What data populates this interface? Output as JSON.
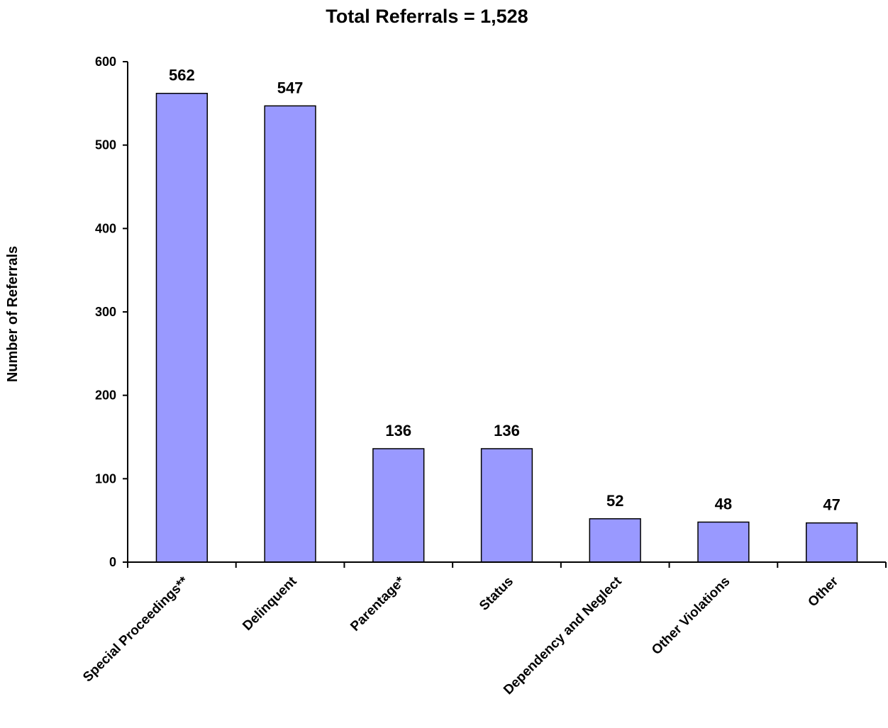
{
  "chart_data": {
    "type": "bar",
    "title": "Total Referrals = 1,528",
    "xlabel": "",
    "ylabel": "Number of Referrals",
    "categories": [
      "Special Proceedings**",
      "Delinquent",
      "Parentage*",
      "Status",
      "Dependency and Neglect",
      "Other Violations",
      "Other"
    ],
    "values": [
      562,
      547,
      136,
      136,
      52,
      48,
      47
    ],
    "data_labels": [
      "562",
      "547",
      "136",
      "136",
      "52",
      "48",
      "47"
    ],
    "ylim": [
      0,
      600
    ],
    "yticks": [
      0,
      100,
      200,
      300,
      400,
      500,
      600
    ],
    "ytick_labels": [
      "0",
      "100",
      "200",
      "300",
      "400",
      "500",
      "600"
    ],
    "grid": false,
    "legend": "none",
    "bar_color": "#9999ff",
    "bar_edge_color": "#000000"
  }
}
